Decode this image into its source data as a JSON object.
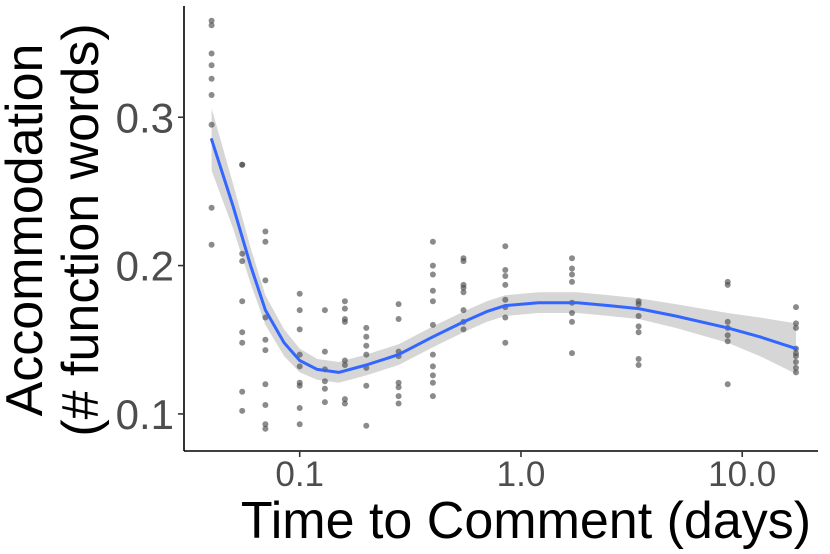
{
  "chart_data": {
    "type": "scatter",
    "title": "",
    "xlabel": "Time to Comment (days)",
    "ylabel_lines": [
      "Accommodation",
      "(# function words)"
    ],
    "x_scale": "log10",
    "xlim": [
      0.03,
      22
    ],
    "ylim": [
      0.075,
      0.375
    ],
    "x_ticks": [
      0.1,
      1.0,
      10.0
    ],
    "x_tick_labels": [
      "0.1",
      "1.0",
      "10.0"
    ],
    "y_ticks": [
      0.1,
      0.2,
      0.3
    ],
    "y_tick_labels": [
      "0.1",
      "0.2",
      "0.3"
    ],
    "grid": false,
    "colors": {
      "points": "#4d4d4d",
      "smooth_line": "#3366ff",
      "confidence_band": "#cccccc",
      "axis": "#000000"
    },
    "scatter_points": [
      [
        0.04,
        0.365
      ],
      [
        0.04,
        0.362
      ],
      [
        0.04,
        0.343
      ],
      [
        0.04,
        0.335
      ],
      [
        0.04,
        0.326
      ],
      [
        0.04,
        0.315
      ],
      [
        0.04,
        0.295
      ],
      [
        0.04,
        0.239
      ],
      [
        0.04,
        0.214
      ],
      [
        0.055,
        0.268
      ],
      [
        0.055,
        0.268
      ],
      [
        0.055,
        0.208
      ],
      [
        0.055,
        0.203
      ],
      [
        0.055,
        0.176
      ],
      [
        0.055,
        0.155
      ],
      [
        0.055,
        0.148
      ],
      [
        0.055,
        0.115
      ],
      [
        0.055,
        0.102
      ],
      [
        0.07,
        0.223
      ],
      [
        0.07,
        0.216
      ],
      [
        0.07,
        0.19
      ],
      [
        0.07,
        0.165
      ],
      [
        0.07,
        0.15
      ],
      [
        0.07,
        0.143
      ],
      [
        0.07,
        0.12
      ],
      [
        0.07,
        0.106
      ],
      [
        0.07,
        0.093
      ],
      [
        0.07,
        0.09
      ],
      [
        0.1,
        0.181
      ],
      [
        0.1,
        0.17
      ],
      [
        0.1,
        0.157
      ],
      [
        0.1,
        0.14
      ],
      [
        0.1,
        0.132
      ],
      [
        0.1,
        0.121
      ],
      [
        0.1,
        0.119
      ],
      [
        0.1,
        0.104
      ],
      [
        0.1,
        0.093
      ],
      [
        0.13,
        0.17
      ],
      [
        0.13,
        0.142
      ],
      [
        0.13,
        0.13
      ],
      [
        0.13,
        0.122
      ],
      [
        0.13,
        0.117
      ],
      [
        0.13,
        0.108
      ],
      [
        0.16,
        0.176
      ],
      [
        0.16,
        0.171
      ],
      [
        0.16,
        0.164
      ],
      [
        0.16,
        0.162
      ],
      [
        0.16,
        0.136
      ],
      [
        0.16,
        0.133
      ],
      [
        0.16,
        0.11
      ],
      [
        0.16,
        0.107
      ],
      [
        0.2,
        0.158
      ],
      [
        0.2,
        0.152
      ],
      [
        0.2,
        0.146
      ],
      [
        0.2,
        0.14
      ],
      [
        0.2,
        0.131
      ],
      [
        0.2,
        0.119
      ],
      [
        0.2,
        0.092
      ],
      [
        0.28,
        0.174
      ],
      [
        0.28,
        0.164
      ],
      [
        0.28,
        0.142
      ],
      [
        0.28,
        0.139
      ],
      [
        0.28,
        0.121
      ],
      [
        0.28,
        0.118
      ],
      [
        0.28,
        0.112
      ],
      [
        0.28,
        0.107
      ],
      [
        0.4,
        0.216
      ],
      [
        0.4,
        0.2
      ],
      [
        0.4,
        0.194
      ],
      [
        0.4,
        0.183
      ],
      [
        0.4,
        0.176
      ],
      [
        0.4,
        0.16
      ],
      [
        0.4,
        0.14
      ],
      [
        0.4,
        0.132
      ],
      [
        0.4,
        0.126
      ],
      [
        0.4,
        0.121
      ],
      [
        0.4,
        0.112
      ],
      [
        0.55,
        0.205
      ],
      [
        0.55,
        0.203
      ],
      [
        0.55,
        0.187
      ],
      [
        0.55,
        0.185
      ],
      [
        0.55,
        0.182
      ],
      [
        0.55,
        0.17
      ],
      [
        0.55,
        0.162
      ],
      [
        0.55,
        0.157
      ],
      [
        0.85,
        0.213
      ],
      [
        0.85,
        0.197
      ],
      [
        0.85,
        0.193
      ],
      [
        0.85,
        0.187
      ],
      [
        0.85,
        0.177
      ],
      [
        0.85,
        0.172
      ],
      [
        0.85,
        0.165
      ],
      [
        0.85,
        0.148
      ],
      [
        1.7,
        0.205
      ],
      [
        1.7,
        0.198
      ],
      [
        1.7,
        0.194
      ],
      [
        1.7,
        0.189
      ],
      [
        1.7,
        0.175
      ],
      [
        1.7,
        0.168
      ],
      [
        1.7,
        0.162
      ],
      [
        1.7,
        0.141
      ],
      [
        3.4,
        0.176
      ],
      [
        3.4,
        0.174
      ],
      [
        3.4,
        0.166
      ],
      [
        3.4,
        0.159
      ],
      [
        3.4,
        0.155
      ],
      [
        3.4,
        0.137
      ],
      [
        3.4,
        0.133
      ],
      [
        8.6,
        0.189
      ],
      [
        8.6,
        0.187
      ],
      [
        8.6,
        0.162
      ],
      [
        8.6,
        0.158
      ],
      [
        8.6,
        0.153
      ],
      [
        8.6,
        0.149
      ],
      [
        8.6,
        0.12
      ],
      [
        17.5,
        0.172
      ],
      [
        17.5,
        0.161
      ],
      [
        17.5,
        0.158
      ],
      [
        17.5,
        0.144
      ],
      [
        17.5,
        0.141
      ],
      [
        17.5,
        0.139
      ],
      [
        17.5,
        0.135
      ],
      [
        17.5,
        0.131
      ],
      [
        17.5,
        0.128
      ]
    ],
    "smooth_curve": [
      [
        0.04,
        0.285
      ],
      [
        0.05,
        0.24
      ],
      [
        0.06,
        0.2
      ],
      [
        0.07,
        0.17
      ],
      [
        0.085,
        0.148
      ],
      [
        0.1,
        0.136
      ],
      [
        0.12,
        0.13
      ],
      [
        0.15,
        0.128
      ],
      [
        0.2,
        0.133
      ],
      [
        0.28,
        0.14
      ],
      [
        0.4,
        0.152
      ],
      [
        0.55,
        0.162
      ],
      [
        0.7,
        0.169
      ],
      [
        0.85,
        0.173
      ],
      [
        1.2,
        0.175
      ],
      [
        1.8,
        0.175
      ],
      [
        2.5,
        0.173
      ],
      [
        3.4,
        0.171
      ],
      [
        5.0,
        0.166
      ],
      [
        8.6,
        0.158
      ],
      [
        12.0,
        0.152
      ],
      [
        17.5,
        0.144
      ]
    ],
    "confidence_band": [
      [
        0.04,
        0.264,
        0.306
      ],
      [
        0.05,
        0.225,
        0.255
      ],
      [
        0.06,
        0.188,
        0.212
      ],
      [
        0.07,
        0.16,
        0.18
      ],
      [
        0.085,
        0.139,
        0.157
      ],
      [
        0.1,
        0.128,
        0.144
      ],
      [
        0.12,
        0.123,
        0.137
      ],
      [
        0.15,
        0.121,
        0.135
      ],
      [
        0.2,
        0.126,
        0.14
      ],
      [
        0.28,
        0.133,
        0.147
      ],
      [
        0.4,
        0.145,
        0.159
      ],
      [
        0.55,
        0.155,
        0.169
      ],
      [
        0.7,
        0.162,
        0.176
      ],
      [
        0.85,
        0.166,
        0.18
      ],
      [
        1.2,
        0.168,
        0.182
      ],
      [
        1.8,
        0.168,
        0.182
      ],
      [
        2.5,
        0.166,
        0.18
      ],
      [
        3.4,
        0.164,
        0.178
      ],
      [
        5.0,
        0.158,
        0.174
      ],
      [
        8.6,
        0.148,
        0.168
      ],
      [
        12.0,
        0.139,
        0.165
      ],
      [
        17.5,
        0.127,
        0.161
      ]
    ]
  }
}
